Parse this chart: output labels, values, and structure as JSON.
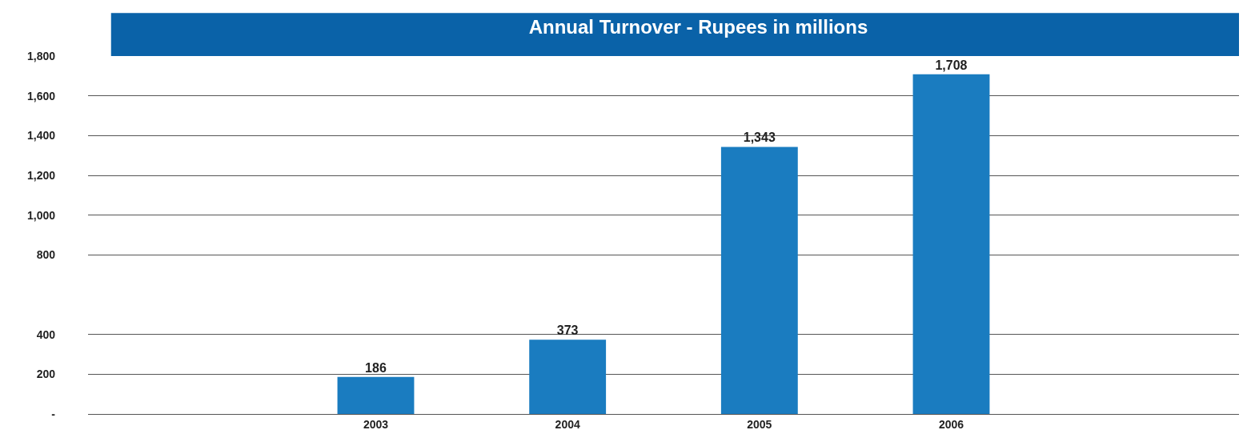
{
  "chart_data": {
    "type": "bar",
    "title": "Annual Turnover - Rupees in millions",
    "categories": [
      "2003",
      "2004",
      "2005",
      "2006"
    ],
    "values": [
      186,
      373,
      1343,
      1708
    ],
    "color": "#1a7cc0",
    "ylim": [
      0,
      1800
    ],
    "yticks": [
      {
        "value": 0,
        "label": "-"
      },
      200,
      400,
      {
        "value": 800,
        "label": "800"
      },
      {
        "value": 1000,
        "label": "1,000"
      },
      {
        "value": 1200,
        "label": "1,200"
      },
      {
        "value": 1400,
        "label": "1,400"
      },
      {
        "value": 1600,
        "label": "1,600"
      },
      {
        "value": 1800,
        "label": "1,800"
      }
    ],
    "value_labels": [
      "186",
      "373",
      "1,343",
      "1,708"
    ],
    "grid": "y",
    "legend": false
  }
}
